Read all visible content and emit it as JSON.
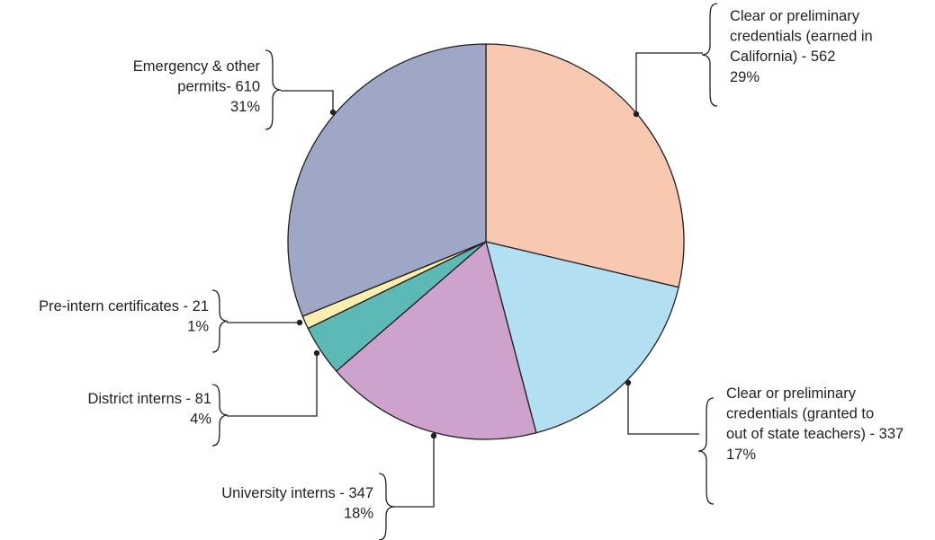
{
  "chart_data": {
    "type": "pie",
    "title": "",
    "slices": [
      {
        "lines": [
          "Clear or preliminary",
          "credentials (earned in",
          "California) - 562",
          "29%"
        ],
        "value": 562,
        "percent": 29,
        "color": "#f9c8b0"
      },
      {
        "lines": [
          "Clear or preliminary",
          "credentials (granted to",
          "out of state teachers) - 337",
          "17%"
        ],
        "value": 337,
        "percent": 17,
        "color": "#b3dff2"
      },
      {
        "lines": [
          "University interns - 347",
          "18%"
        ],
        "value": 347,
        "percent": 18,
        "color": "#cda2cd"
      },
      {
        "lines": [
          "District interns - 81",
          "4%"
        ],
        "value": 81,
        "percent": 4,
        "color": "#5db9b6"
      },
      {
        "lines": [
          "Pre-intern certificates - 21",
          "1%"
        ],
        "value": 21,
        "percent": 1,
        "color": "#fbeeae"
      },
      {
        "lines": [
          "Emergency & other",
          "permits- 610",
          "31%"
        ],
        "value": 610,
        "percent": 31,
        "color": "#9fa7c6"
      }
    ]
  }
}
